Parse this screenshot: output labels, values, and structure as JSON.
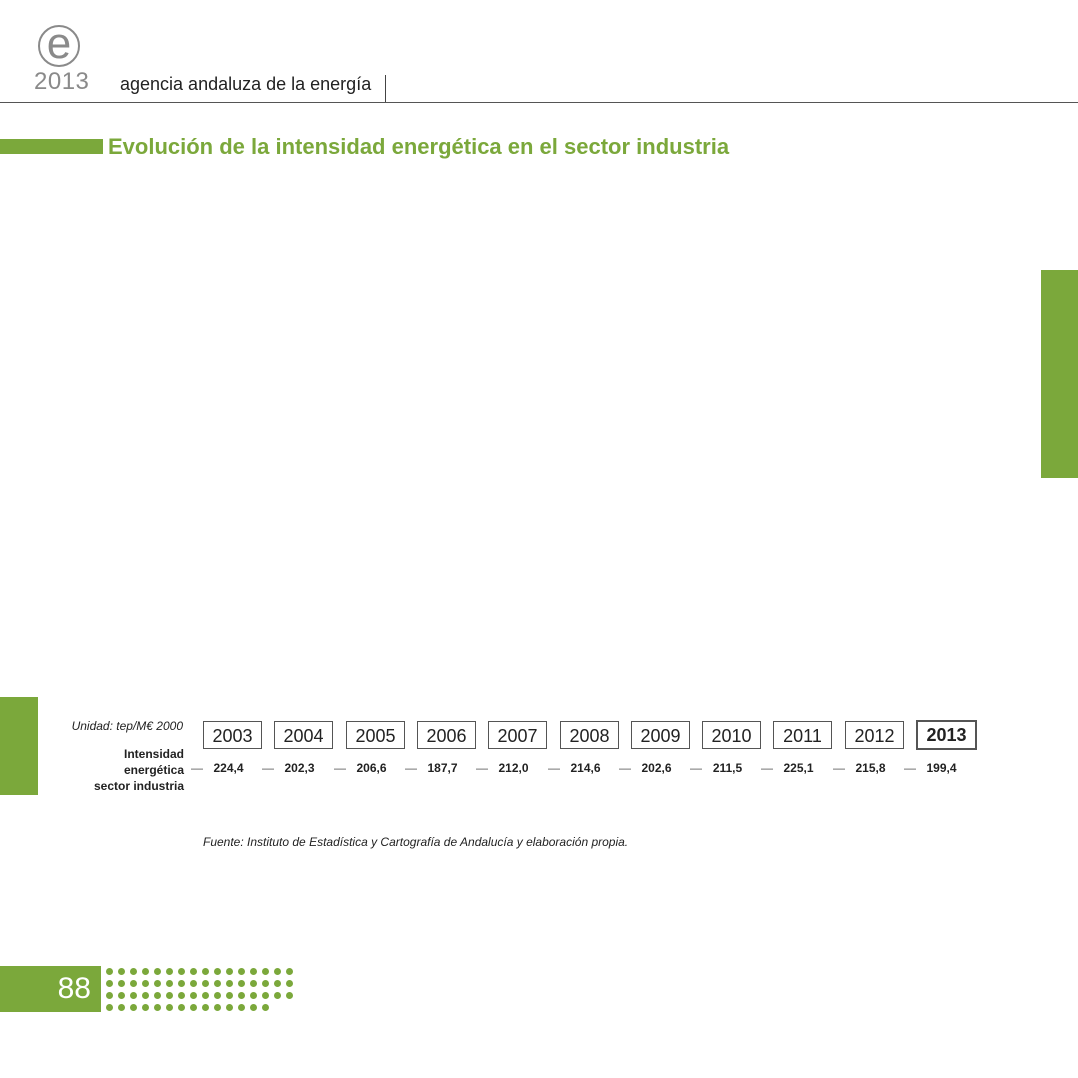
{
  "header": {
    "logo_letter": "e",
    "logo_year": "2013",
    "agency": "agencia andaluza de la energía"
  },
  "section": {
    "title": "Evolución de la intensidad energética en el sector industria"
  },
  "table": {
    "unit": "Unidad: tep/M€ 2000",
    "row_label_lines": [
      "Intensidad",
      "energética",
      "sector industria"
    ],
    "separator": "—",
    "years": [
      "2003",
      "2004",
      "2005",
      "2006",
      "2007",
      "2008",
      "2009",
      "2010",
      "2011",
      "2012",
      "2013"
    ],
    "values": [
      "224,4",
      "202,3",
      "206,6",
      "187,7",
      "212,0",
      "214,6",
      "202,6",
      "211,5",
      "225,1",
      "215,8",
      "199,4"
    ],
    "highlighted_year": "2013"
  },
  "source": "Fuente: Instituto de Estadística y Cartografía de Andalucía y elaboración propia.",
  "footer": {
    "page_number": "88"
  },
  "colors": {
    "accent": "#7ba83b",
    "text": "#222222",
    "muted": "#8a8a8a"
  }
}
